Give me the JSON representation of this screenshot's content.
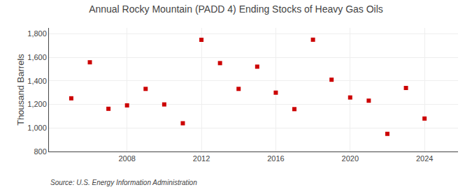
{
  "chart_data": {
    "type": "scatter",
    "title": "Annual Rocky Mountain (PADD 4) Ending Stocks of Heavy Gas Oils",
    "ylabel": "Thousand Barrels",
    "annotations": [
      "Source: U.S. Energy Information Administration"
    ],
    "x": [
      2005,
      2006,
      2007,
      2008,
      2009,
      2010,
      2011,
      2012,
      2013,
      2014,
      2015,
      2016,
      2017,
      2018,
      2019,
      2020,
      2021,
      2022,
      2023,
      2024
    ],
    "values": [
      1252,
      1558,
      1163,
      1192,
      1332,
      1200,
      1040,
      1749,
      1551,
      1332,
      1521,
      1300,
      1160,
      1750,
      1410,
      1259,
      1232,
      950,
      1340,
      1080
    ],
    "color": "#cc0000",
    "marker": "square",
    "xlim": [
      2003.8,
      2025.8
    ],
    "xticks": [
      2008,
      2012,
      2016,
      2020,
      2024
    ],
    "ylim": [
      800,
      1850
    ],
    "yticks": [
      800,
      {
        "value": 1000,
        "label": "1,000"
      },
      {
        "value": 1200,
        "label": "1,200"
      },
      {
        "value": 1400,
        "label": "1,400"
      },
      {
        "value": 1600,
        "label": "1,600"
      },
      {
        "value": 1800,
        "label": "1,800"
      }
    ],
    "grid": true
  }
}
